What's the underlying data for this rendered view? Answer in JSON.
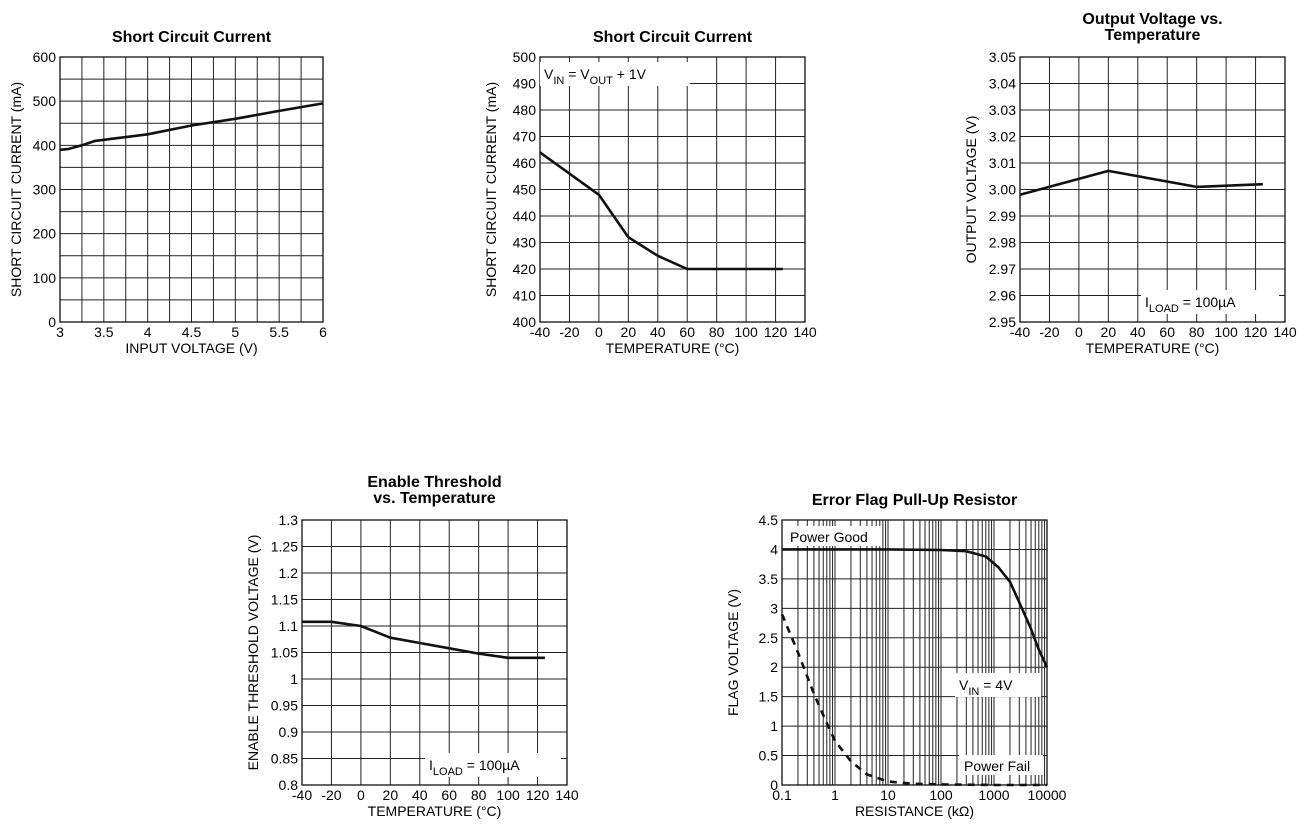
{
  "chart_data": [
    {
      "type": "line",
      "title": [
        "Short Circuit Current"
      ],
      "xlabel": "INPUT VOLTAGE (V)",
      "ylabel": "SHORT CIRCUIT CURRENT (mA)",
      "xlim": [
        3,
        6
      ],
      "ylim": [
        0,
        600
      ],
      "x_ticks": [
        "3",
        "3.5",
        "4",
        "4.5",
        "5",
        "5.5",
        "6"
      ],
      "y_ticks": [
        "0",
        "100",
        "200",
        "300",
        "400",
        "500",
        "600"
      ],
      "grid": true,
      "series": [
        {
          "x": [
            3.0,
            3.1,
            3.25,
            3.4,
            3.6,
            4.0,
            4.5,
            5.0,
            5.5,
            6.0
          ],
          "y": [
            390,
            392,
            400,
            410,
            415,
            425,
            445,
            460,
            478,
            495
          ]
        }
      ]
    },
    {
      "type": "line",
      "title": [
        "Short Circuit Current"
      ],
      "xlabel": "TEMPERATURE (°C)",
      "ylabel": "SHORT CIRCUIT CURRENT (mA)",
      "xlim": [
        -40,
        140
      ],
      "ylim": [
        400,
        500
      ],
      "x_ticks": [
        "-40",
        "-20",
        "0",
        "20",
        "40",
        "60",
        "80",
        "100",
        "120",
        "140"
      ],
      "y_ticks": [
        "400",
        "410",
        "420",
        "430",
        "440",
        "450",
        "460",
        "470",
        "480",
        "490",
        "500"
      ],
      "grid": true,
      "annotation": {
        "pre": "V",
        "sub1": "IN",
        "mid": " = V",
        "sub2": "OUT",
        "post": " + 1V"
      },
      "series": [
        {
          "x": [
            -40,
            -20,
            0,
            20,
            40,
            60,
            80,
            100,
            125
          ],
          "y": [
            464,
            456,
            448,
            432,
            425,
            420,
            420,
            420,
            420
          ]
        }
      ]
    },
    {
      "type": "line",
      "title": [
        "Output Voltage vs.",
        "Temperature"
      ],
      "xlabel": "TEMPERATURE (°C)",
      "ylabel": "OUTPUT VOLTAGE (V)",
      "xlim": [
        -40,
        140
      ],
      "ylim": [
        2.95,
        3.05
      ],
      "x_ticks": [
        "-40",
        "-20",
        "0",
        "20",
        "40",
        "60",
        "80",
        "100",
        "120",
        "140"
      ],
      "y_ticks": [
        "2.95",
        "2.96",
        "2.97",
        "2.98",
        "2.99",
        "3.00",
        "3.01",
        "3.02",
        "3.03",
        "3.04",
        "3.05"
      ],
      "grid": true,
      "annotation": {
        "pre": "I",
        "sub1": "LOAD",
        "post": " = 100µA"
      },
      "series": [
        {
          "x": [
            -40,
            20,
            80,
            125
          ],
          "y": [
            2.998,
            3.007,
            3.001,
            3.002
          ]
        }
      ]
    },
    {
      "type": "line",
      "title": [
        "Enable Threshold",
        "vs. Temperature"
      ],
      "xlabel": "TEMPERATURE (°C)",
      "ylabel": "ENABLE THRESHOLD VOLTAGE (V)",
      "xlim": [
        -40,
        140
      ],
      "ylim": [
        0.8,
        1.3
      ],
      "x_ticks": [
        "-40",
        "-20",
        "0",
        "20",
        "40",
        "60",
        "80",
        "100",
        "120",
        "140"
      ],
      "y_ticks": [
        "0.8",
        "0.85",
        "0.9",
        "0.95",
        "1",
        "1.05",
        "1.1",
        "1.15",
        "1.2",
        "1.25",
        "1.3"
      ],
      "grid": true,
      "annotation": {
        "pre": "I",
        "sub1": "LOAD",
        "post": " = 100µA"
      },
      "series": [
        {
          "x": [
            -40,
            -20,
            0,
            20,
            40,
            60,
            80,
            100,
            125
          ],
          "y": [
            1.108,
            1.108,
            1.1,
            1.078,
            1.068,
            1.058,
            1.048,
            1.04,
            1.04
          ]
        }
      ]
    },
    {
      "type": "line",
      "title": [
        "Error Flag Pull-Up Resistor"
      ],
      "xlabel": "RESISTANCE (kΩ)",
      "ylabel": "FLAG VOLTAGE (V)",
      "xscale": "log",
      "xlim": [
        0.1,
        10000
      ],
      "ylim": [
        0,
        4.5
      ],
      "x_ticks": [
        "0.1",
        "1",
        "10",
        "100",
        "1000",
        "10000"
      ],
      "y_ticks": [
        "0",
        "0.5",
        "1",
        "1.5",
        "2",
        "2.5",
        "3",
        "3.5",
        "4",
        "4.5"
      ],
      "grid": true,
      "annotation": {
        "pre": "V",
        "sub1": "IN",
        "post": " = 4V"
      },
      "label_good": "Power Good",
      "label_fail": "Power Fail",
      "series": [
        {
          "name": "Power Good",
          "style": "solid",
          "x": [
            0.1,
            1,
            10,
            100,
            300,
            700,
            1200,
            2000,
            3000,
            5000,
            7000,
            10000
          ],
          "y": [
            4.0,
            4.0,
            4.0,
            3.99,
            3.97,
            3.88,
            3.7,
            3.45,
            3.1,
            2.65,
            2.3,
            2.0
          ]
        },
        {
          "name": "Power Fail",
          "style": "dashed",
          "x": [
            0.1,
            0.2,
            0.4,
            0.7,
            1,
            2,
            4,
            10,
            30,
            100,
            1000,
            10000
          ],
          "y": [
            2.9,
            2.25,
            1.55,
            1.05,
            0.75,
            0.4,
            0.18,
            0.06,
            0.02,
            0.01,
            0.0,
            0.0
          ]
        }
      ]
    }
  ]
}
